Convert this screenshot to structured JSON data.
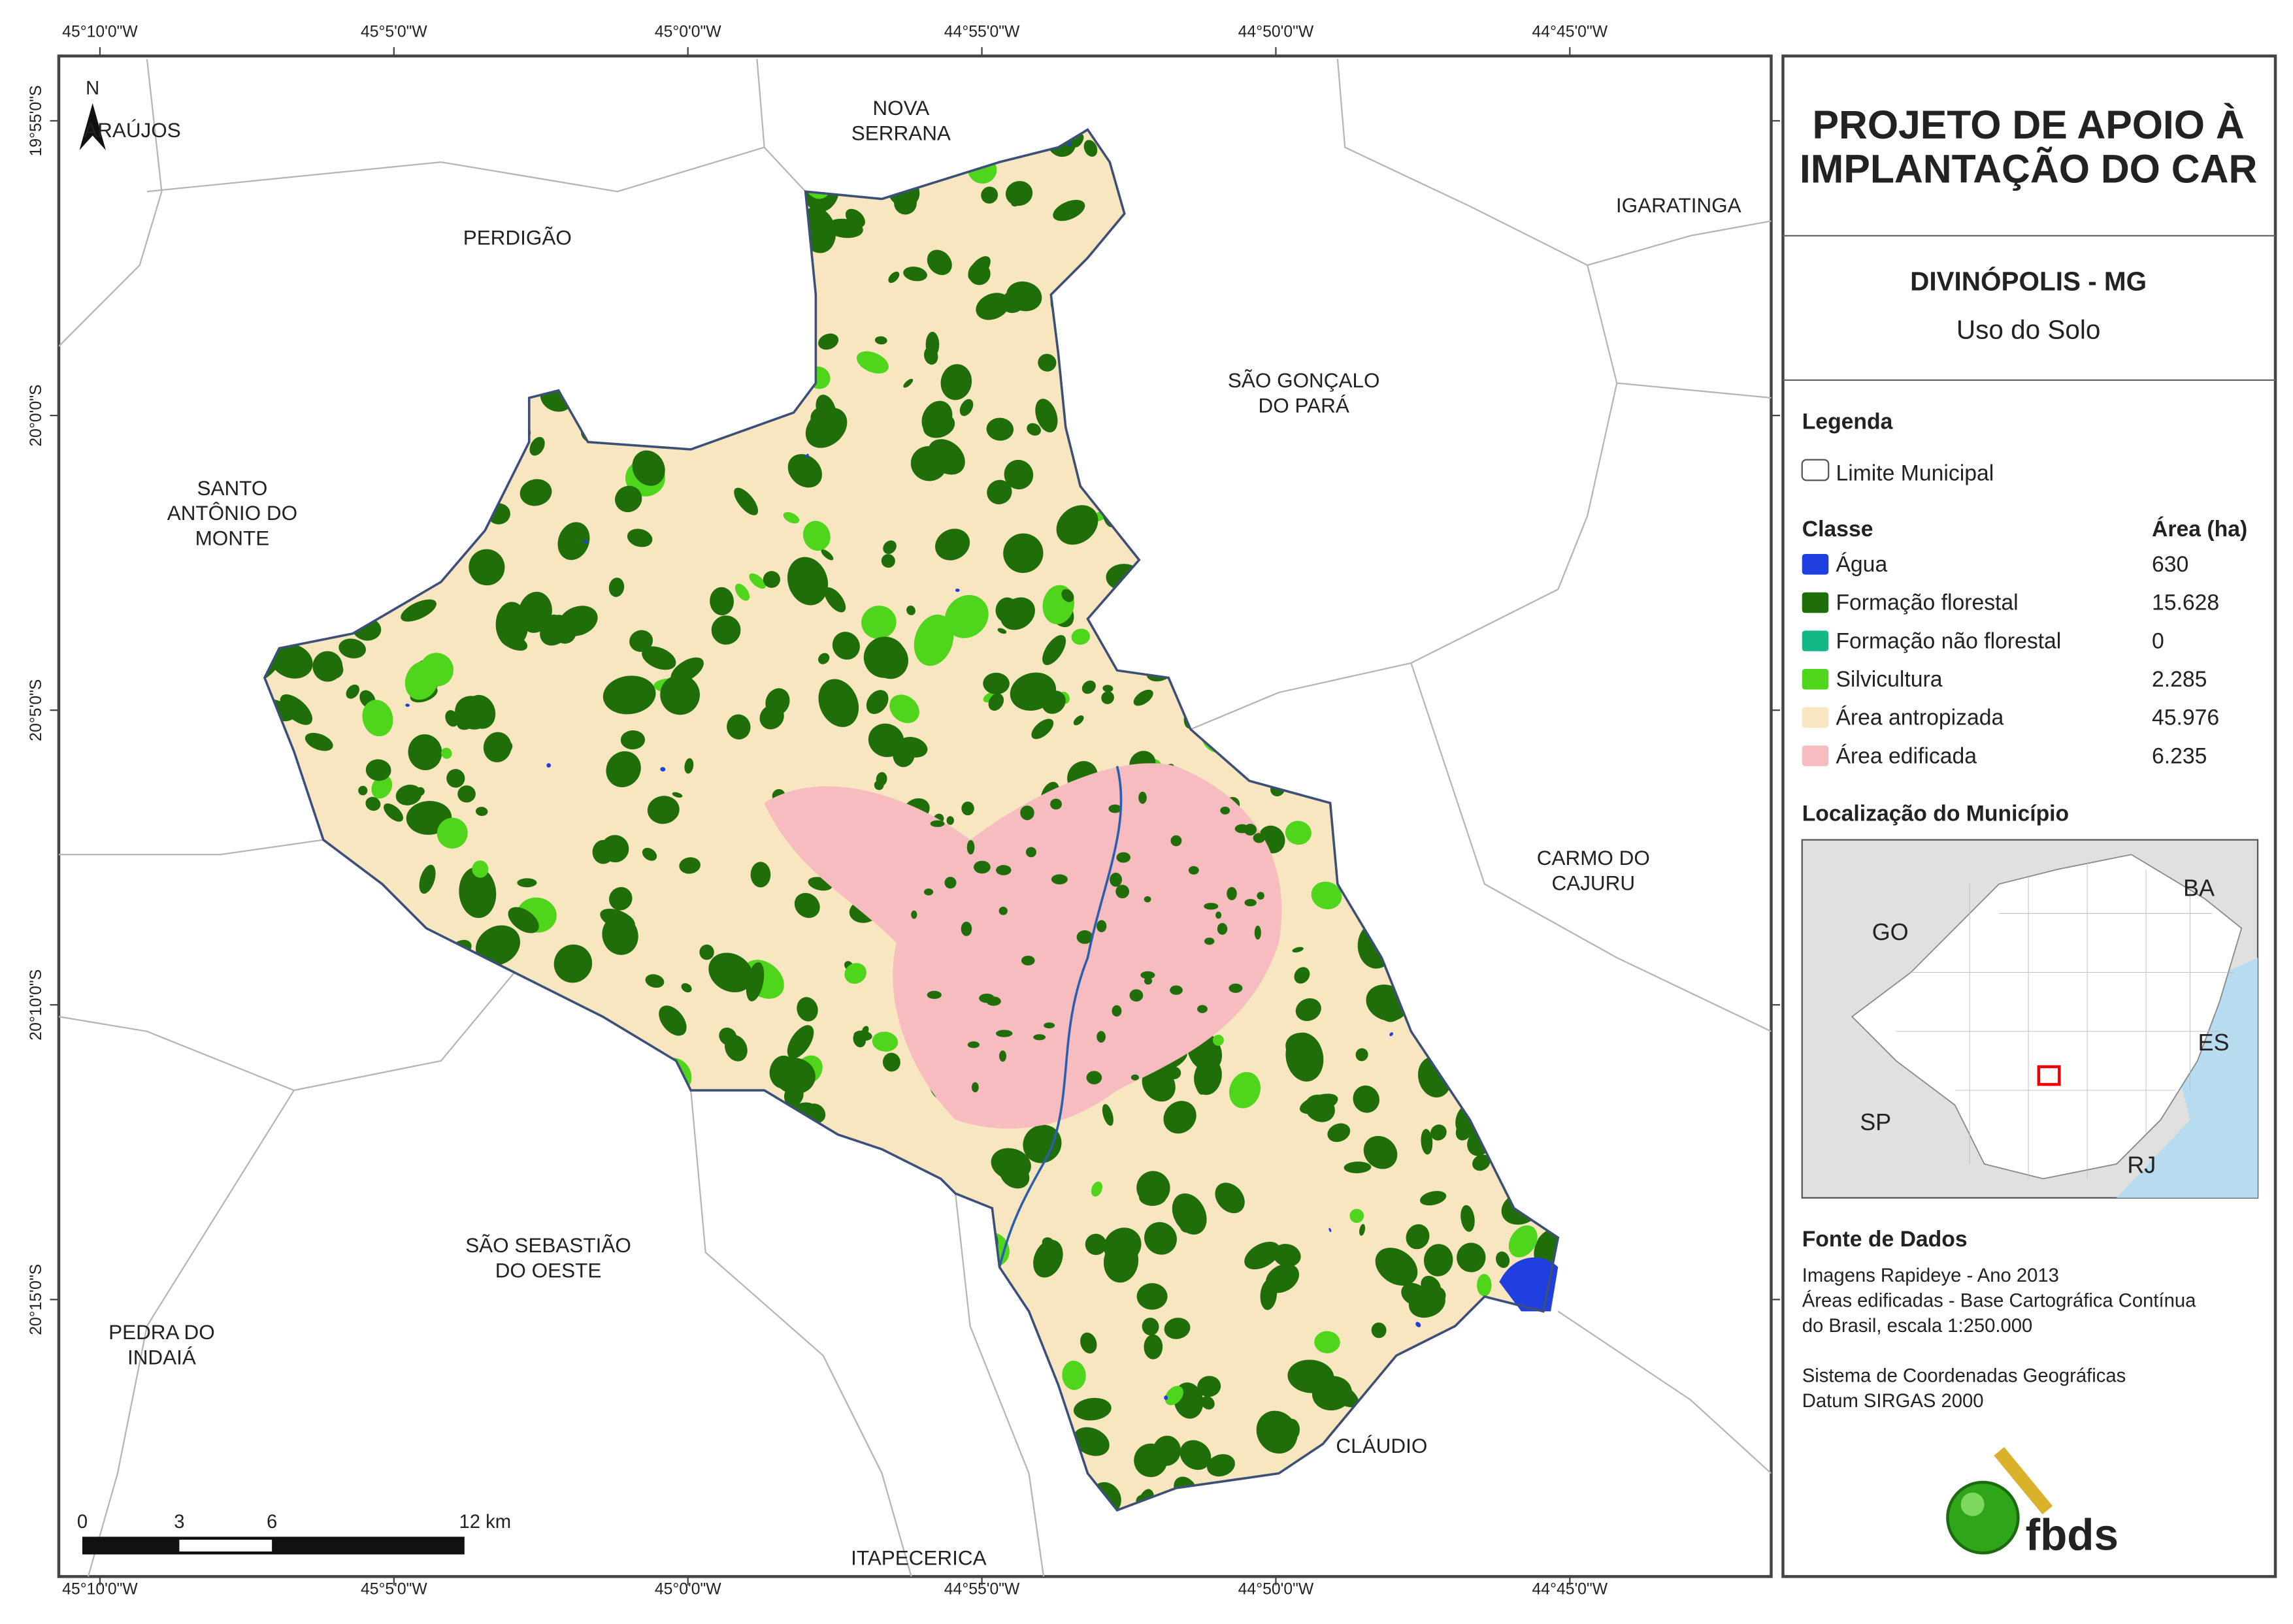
{
  "header": {
    "title_lines": [
      "PROJETO DE APOIO À",
      "IMPLANTAÇÃO DO CAR"
    ],
    "municipality": "DIVINÓPOLIS - MG",
    "subtitle": "Uso do Solo"
  },
  "legend": {
    "title": "Legenda",
    "boundary": "Limite Municipal",
    "class_header": "Classe",
    "area_header": "Área (ha)",
    "classes": [
      {
        "name": "Água",
        "area": "630",
        "color": "#1f3fe0"
      },
      {
        "name": "Formação florestal",
        "area": "15.628",
        "color": "#1f6e0a"
      },
      {
        "name": "Formação não florestal",
        "area": "0",
        "color": "#12b886"
      },
      {
        "name": "Silvicultura",
        "area": "2.285",
        "color": "#4fd61c"
      },
      {
        "name": "Área antropizada",
        "area": "45.976",
        "color": "#f8e6c0"
      },
      {
        "name": "Área edificada",
        "area": "6.235",
        "color": "#f7bcbf"
      }
    ]
  },
  "location": {
    "title": "Localização do Município",
    "states": [
      "GO",
      "BA",
      "ES",
      "SP",
      "RJ"
    ]
  },
  "sources": {
    "title": "Fonte de Dados",
    "lines": [
      "Imagens Rapideye - Ano 2013",
      "Áreas edificadas - Base Cartográfica Contínua",
      "do Brasil, escala 1:250.000"
    ],
    "lines2": [
      "Sistema de Coordenadas Geográficas",
      "Datum SIRGAS 2000"
    ]
  },
  "logo": "fbds",
  "map": {
    "north": "N",
    "longitudes": [
      "45°10'0\"W",
      "45°5'0\"W",
      "45°0'0\"W",
      "44°55'0\"W",
      "44°50'0\"W",
      "44°45'0\"W"
    ],
    "latitudes": [
      "19°55'0\"S",
      "20°0'0\"S",
      "20°5'0\"S",
      "20°10'0\"S",
      "20°15'0\"S"
    ],
    "places": [
      [
        "ARAÚJOS"
      ],
      [
        "PERDIGÃO"
      ],
      [
        "NOVA",
        "SERRANA"
      ],
      [
        "IGARATINGA"
      ],
      [
        "SÃO GONÇALO",
        "DO PARÁ"
      ],
      [
        "SANTO",
        "ANTÔNIO DO",
        "MONTE"
      ],
      [
        "CARMO DO",
        "CAJURU"
      ],
      [
        "SÃO SEBASTIÃO",
        "DO OESTE"
      ],
      [
        "PEDRA DO",
        "INDAIÁ"
      ],
      [
        "CLÁUDIO"
      ],
      [
        "ITAPECERICA"
      ]
    ],
    "scale_bar": [
      "0",
      "3",
      "6",
      "12 km"
    ]
  }
}
